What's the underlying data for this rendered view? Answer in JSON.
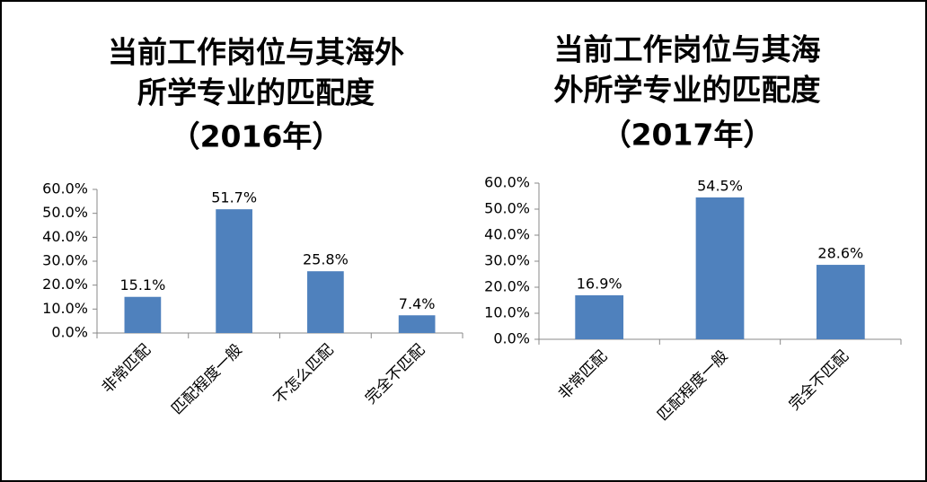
{
  "chart_data": [
    {
      "type": "bar",
      "title": [
        "当前工作岗位与其海外",
        "所学专业的匹配度",
        "（2016年）"
      ],
      "categories": [
        "非常匹配",
        "匹配程度一般",
        "不怎么匹配",
        "完全不匹配"
      ],
      "values": [
        15.1,
        51.7,
        25.8,
        7.4
      ],
      "value_labels": [
        "15.1%",
        "51.7%",
        "25.8%",
        "7.4%"
      ],
      "color": "#4f81bd",
      "ylim": [
        0,
        60
      ],
      "yticks": [
        {
          "value": 0,
          "label": "0.0%"
        },
        {
          "value": 10,
          "label": "10.0%"
        },
        {
          "value": 20,
          "label": "20.0%"
        },
        {
          "value": 30,
          "label": "30.0%"
        },
        {
          "value": 40,
          "label": "40.0%"
        },
        {
          "value": 50,
          "label": "50.0%"
        },
        {
          "value": 60,
          "label": "60.0%"
        }
      ],
      "grid": false
    },
    {
      "type": "bar",
      "title": [
        "当前工作岗位与其海",
        "外所学专业的匹配度",
        "（2017年）"
      ],
      "categories": [
        "非常匹配",
        "匹配程度一般",
        "完全不匹配"
      ],
      "values": [
        16.9,
        54.5,
        28.6
      ],
      "value_labels": [
        "16.9%",
        "54.5%",
        "28.6%"
      ],
      "color": "#4f81bd",
      "ylim": [
        0,
        60
      ],
      "yticks": [
        {
          "value": 0,
          "label": "0.0%"
        },
        {
          "value": 10,
          "label": "10.0%"
        },
        {
          "value": 20,
          "label": "20.0%"
        },
        {
          "value": 30,
          "label": "30.0%"
        },
        {
          "value": 40,
          "label": "40.0%"
        },
        {
          "value": 50,
          "label": "50.0%"
        },
        {
          "value": 60,
          "label": "60.0%"
        }
      ],
      "grid": false
    }
  ]
}
